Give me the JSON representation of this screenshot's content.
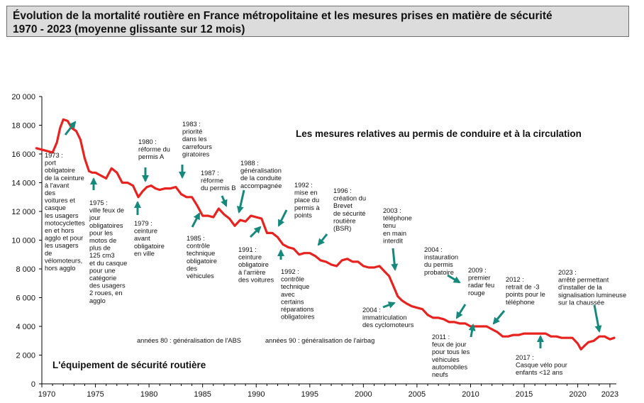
{
  "title": {
    "line1": "Évolution de la mortalité routière en France métropolitaine et les mesures prises en matière de sécurité",
    "line2": "1970 - 2023 (moyenne glissante sur 12 mois)"
  },
  "colors": {
    "line": "#e8231f",
    "arrow": "#14897c",
    "text": "#111111"
  },
  "chart_data": {
    "type": "line",
    "title": "Évolution de la mortalité routière en France métropolitaine et les mesures prises en matière de sécurité 1970 - 2023 (moyenne glissante sur 12 mois)",
    "xlabel": "",
    "ylabel": "",
    "xlim": [
      1970,
      2023.6
    ],
    "ylim": [
      0,
      20000
    ],
    "grid": false,
    "y_ticks": [
      0,
      2000,
      4000,
      6000,
      8000,
      10000,
      12000,
      14000,
      16000,
      18000,
      20000
    ],
    "y_tick_labels": [
      "0",
      "2 000",
      "4 000",
      "6 000",
      "8 000",
      "10 000",
      "12 000",
      "14 000",
      "16 000",
      "18 000",
      "20 000"
    ],
    "x_ticks": [
      1970,
      1975,
      1980,
      1985,
      1990,
      1995,
      2000,
      2005,
      2010,
      2015,
      2020,
      2023
    ],
    "x_tick_labels": [
      "1970",
      "1975",
      "1980",
      "1985",
      "1990",
      "1995",
      "2000",
      "2005",
      "2010",
      "2015",
      "2020",
      "2023"
    ],
    "series": [
      {
        "x": [
          1969.5,
          1970.0,
          1970.5,
          1971.0,
          1971.4,
          1971.7,
          1972.0,
          1972.4,
          1972.8,
          1973.2,
          1973.6,
          1974.0,
          1974.4,
          1974.7,
          1975.0,
          1975.5,
          1976.0,
          1976.5,
          1977.0,
          1977.5,
          1978.0,
          1978.5,
          1979.0,
          1979.4,
          1979.8,
          1980.2,
          1980.6,
          1981.0,
          1981.5,
          1982.0,
          1982.5,
          1983.0,
          1983.5,
          1984.0,
          1984.5,
          1985.0,
          1985.5,
          1986.0,
          1986.5,
          1987.0,
          1987.5,
          1988.0,
          1988.5,
          1989.0,
          1989.5,
          1990.0,
          1990.5,
          1991.0,
          1991.5,
          1992.0,
          1992.5,
          1993.0,
          1993.5,
          1994.0,
          1994.5,
          1995.0,
          1995.5,
          1996.0,
          1996.5,
          1997.0,
          1997.5,
          1998.0,
          1998.5,
          1999.0,
          1999.5,
          2000.0,
          2000.5,
          2001.0,
          2001.5,
          2002.0,
          2002.4,
          2002.8,
          2003.2,
          2003.6,
          2004.0,
          2004.5,
          2005.0,
          2005.5,
          2006.0,
          2006.5,
          2007.0,
          2007.5,
          2008.0,
          2008.5,
          2009.0,
          2009.5,
          2010.0,
          2010.5,
          2011.0,
          2011.5,
          2012.0,
          2012.5,
          2013.0,
          2013.5,
          2014.0,
          2014.5,
          2015.0,
          2015.5,
          2016.0,
          2016.5,
          2017.0,
          2017.5,
          2018.0,
          2018.5,
          2019.0,
          2019.5,
          2020.0,
          2020.3,
          2020.7,
          2021.0,
          2021.5,
          2022.0,
          2022.5,
          2023.0,
          2023.4
        ],
        "values": [
          16400,
          16300,
          16200,
          16100,
          16800,
          17800,
          18400,
          18300,
          17800,
          17600,
          17000,
          15700,
          14800,
          14700,
          14700,
          14500,
          14300,
          15000,
          14700,
          14000,
          14000,
          13800,
          13000,
          13400,
          13700,
          13800,
          13600,
          13500,
          13600,
          13600,
          13700,
          13200,
          13000,
          13000,
          12400,
          11700,
          11700,
          11600,
          12200,
          11800,
          11500,
          11000,
          11400,
          11300,
          11700,
          11600,
          11500,
          10500,
          10500,
          10200,
          9700,
          9500,
          9400,
          9000,
          9100,
          9100,
          8900,
          8600,
          8500,
          8300,
          8200,
          8600,
          8700,
          8500,
          8500,
          8200,
          8100,
          8100,
          8200,
          7800,
          7500,
          6800,
          6100,
          5800,
          5600,
          5400,
          5300,
          5200,
          4800,
          4600,
          4600,
          4500,
          4300,
          4300,
          4200,
          4200,
          4000,
          4000,
          4000,
          4000,
          3800,
          3600,
          3300,
          3300,
          3400,
          3400,
          3500,
          3500,
          3500,
          3500,
          3500,
          3300,
          3300,
          3200,
          3200,
          3200,
          2800,
          2400,
          2700,
          2900,
          3000,
          3300,
          3300,
          3100,
          3200
        ]
      }
    ],
    "annotations": [
      {
        "text": "1973 :\nport\nobligatoire\nde la ceinture\nà l'avant\ndes\nvoitures et\ncasque\nles usagers\nmotocyclettes\nen et hors\nagglo et pour\nles usagers\nde\nvélomoteurs,\nhors agglo",
        "year": 1973
      },
      {
        "text": "1975 :\nville feux de\njour\nobligatoires\npour les\nmotos de\nplus de\n125 cm3\net du casque\npour une\ncatégorie\ndes usagers\n2 roues, en\nagglo",
        "year": 1975
      },
      {
        "text": "1979 :\nceinture\navant\nobligatoire\nen ville",
        "year": 1979
      },
      {
        "text": "1980 :\nréforme du\npermis A",
        "year": 1980
      },
      {
        "text": "1983 :\npriorité\ndans les\ncarrefours\ngiratoires",
        "year": 1983
      },
      {
        "text": "1985 :\ncontrôle\ntechnique\nobligatoire\ndes\nvéhicules",
        "year": 1985
      },
      {
        "text": "1987 :\nréforme\ndu permis B",
        "year": 1987
      },
      {
        "text": "1988 :\ngénéralisation\nde la conduite\naccompagnée",
        "year": 1988
      },
      {
        "text": "1991 :\nceinture\nobligatoire\nà l'arrière\ndes voitures",
        "year": 1991
      },
      {
        "text": "1992 :\nmise en\nplace du\npermis à\npoints",
        "year": 1992
      },
      {
        "text": "1992 :\ncontrôle\ntechnique\navec\ncertains\nréparations\nobligatoires",
        "year": 1992
      },
      {
        "text": "1996 :\ncréation du\nBrevet\nde sécurité\nroutière\n(BSR)",
        "year": 1996
      },
      {
        "text": "2003 :\ntéléphone\ntenu\nen main\ninterdit",
        "year": 2003
      },
      {
        "text": "2004 :\nimmatriculation\ndes cyclomoteurs",
        "year": 2004
      },
      {
        "text": "2004 :\ninstauration\ndu permis\nprobatoire",
        "year": 2004
      },
      {
        "text": "2009 :\npremier\nradar feu\nrouge",
        "year": 2009
      },
      {
        "text": "2011 :\nfeux de jour\npour tous les\nvéhicules\nautomobiles\nneufs",
        "year": 2011
      },
      {
        "text": "2012 :\nretrait de -3\npoints pour le\ntéléphone",
        "year": 2012
      },
      {
        "text": "2017 :\nCasque vélo pour\nenfants <12 ans",
        "year": 2017
      },
      {
        "text": "2023 :\narrêté permettant\nd'installer de la\nsignalisation lumineuse\nsur la chaussée",
        "year": 2023
      },
      {
        "text": "années 80 : généralisation de l'ABS"
      },
      {
        "text": "années 90 : généralisation de l'airbag"
      }
    ],
    "section_labels": {
      "top": "Les mesures relatives au permis de conduire et à la circulation",
      "bottom": "L'équipement de sécurité routière"
    }
  }
}
